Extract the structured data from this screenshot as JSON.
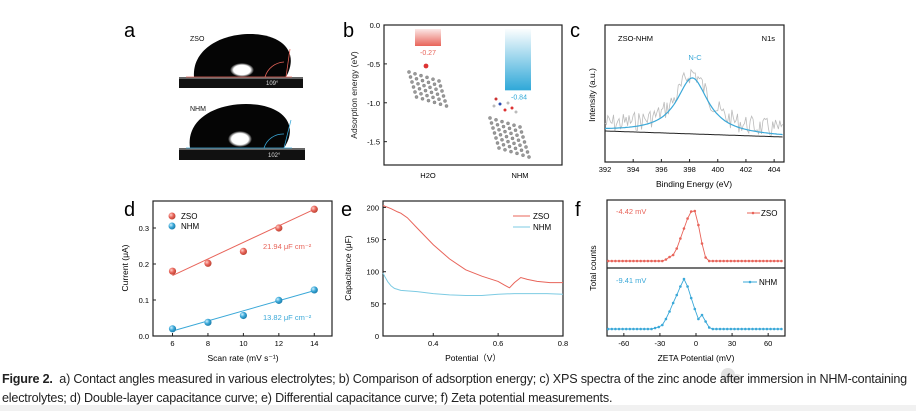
{
  "figure": {
    "panel_labels": [
      "a",
      "b",
      "c",
      "d",
      "e",
      "f"
    ],
    "caption_label": "Figure 2.",
    "caption_text": "a) Contact angles measured in various electrolytes; b) Comparison of adsorption energy; c) XPS spectra of the zinc anode after immersion in NHM-containing electrolytes; d) Double-layer capacitance curve; e) Differential capacitance curve; f) Zeta potential measurements.",
    "watermark": "公众号 · 水系星球"
  },
  "panel_a": {
    "drops": [
      {
        "label": "ZSO",
        "angle": "109°",
        "color": "#e8645a"
      },
      {
        "label": "NHM",
        "angle": "102°",
        "color": "#3aa8d8"
      }
    ]
  },
  "chart_data": [
    {
      "panel": "b",
      "type": "bar",
      "categories": [
        "H2O",
        "NHM"
      ],
      "values": [
        -0.27,
        -0.84
      ],
      "value_labels": [
        "-0.27",
        "-0.84"
      ],
      "colors": [
        "#e8645a",
        "#2fa8d8"
      ],
      "ylabel": "Adsorption energy (eV)",
      "ylim": [
        -1.8,
        0.0
      ],
      "yticks": [
        0.0,
        -0.5,
        -1.0,
        -1.5
      ],
      "ytick_labels": [
        "0.0",
        "-0.5",
        "-1.0",
        "-1.5"
      ]
    },
    {
      "panel": "c",
      "type": "line",
      "title_left": "ZSO-NHM",
      "title_right": "N1s",
      "peak_label": "N-C",
      "peak_center": 398.2,
      "xlabel": "Binding Energy (eV)",
      "ylabel": "Intensity (a.u.)",
      "xlim": [
        392,
        404.7
      ],
      "xticks": [
        392,
        394,
        396,
        398,
        400,
        402,
        404
      ],
      "series": [
        {
          "role": "raw",
          "color": "#b8b8b8"
        },
        {
          "role": "fit",
          "color": "#3aa8d8"
        },
        {
          "role": "background",
          "color": "#222222"
        }
      ]
    },
    {
      "panel": "d",
      "type": "scatter",
      "xlabel": "Scan rate (mV s⁻¹)",
      "ylabel": "Current (μA)",
      "xlim": [
        4.9,
        15
      ],
      "ylim": [
        0,
        0.375
      ],
      "xticks": [
        6,
        8,
        10,
        12,
        14
      ],
      "yticks": [
        0.0,
        0.1,
        0.2,
        0.3
      ],
      "ytick_labels": [
        "0.0",
        "0.1",
        "0.2",
        "0.3"
      ],
      "x": [
        6,
        8,
        10,
        12,
        14
      ],
      "series": [
        {
          "name": "ZSO",
          "values": [
            0.18,
            0.202,
            0.235,
            0.3,
            0.352
          ],
          "fit": [
            0.168,
            0.352
          ],
          "annotation": "21.94 μF cm⁻²",
          "color": "#e8645a"
        },
        {
          "name": "NHM",
          "values": [
            0.02,
            0.038,
            0.057,
            0.099,
            0.128
          ],
          "fit": [
            0.014,
            0.126
          ],
          "annotation": "13.82 μF cm⁻²",
          "color": "#3aa8d8"
        }
      ]
    },
    {
      "panel": "e",
      "type": "line",
      "xlabel": "Potential（V）",
      "ylabel": "Capacitance (μF)",
      "xlim": [
        0.245,
        0.8
      ],
      "ylim": [
        0,
        210
      ],
      "xticks": [
        0.4,
        0.6,
        0.8
      ],
      "yticks": [
        0,
        50,
        100,
        150,
        200
      ],
      "series": [
        {
          "name": "ZSO",
          "color": "#e8645a",
          "x": [
            0.245,
            0.27,
            0.29,
            0.3,
            0.32,
            0.35,
            0.4,
            0.45,
            0.5,
            0.55,
            0.6,
            0.62,
            0.635,
            0.65,
            0.67,
            0.69,
            0.72,
            0.76,
            0.8
          ],
          "y": [
            203,
            198,
            193,
            191,
            184,
            168,
            142,
            120,
            103,
            93,
            85,
            79,
            75,
            83,
            91,
            88,
            85,
            83,
            83
          ]
        },
        {
          "name": "NHM",
          "color": "#7dcbe3",
          "x": [
            0.245,
            0.25,
            0.26,
            0.27,
            0.28,
            0.3,
            0.35,
            0.4,
            0.45,
            0.5,
            0.55,
            0.6,
            0.65,
            0.7,
            0.75,
            0.8
          ],
          "y": [
            98,
            93,
            84,
            78,
            74,
            71,
            69,
            66,
            64,
            63,
            63,
            65,
            66,
            66,
            66,
            65
          ]
        }
      ]
    },
    {
      "panel": "f",
      "type": "line",
      "xlabel": "ZETA Potential (mV)",
      "ylabel": "Total counts",
      "xlim": [
        -74,
        74
      ],
      "xticks": [
        -60,
        -30,
        0,
        30,
        60
      ],
      "series": [
        {
          "name": "ZSO",
          "annotation": "-4.42 mV",
          "color": "#e8645a",
          "x": [
            -28,
            -25,
            -22,
            -19,
            -16,
            -13,
            -10,
            -7,
            -4,
            -1,
            2,
            5,
            8,
            11
          ],
          "y": [
            0,
            0.03,
            0.08,
            0.12,
            0.25,
            0.45,
            0.65,
            0.85,
            0.99,
            1.0,
            0.72,
            0.35,
            0.07,
            0
          ]
        },
        {
          "name": "NHM",
          "annotation": "-9.41 mV",
          "color": "#3aa8d8",
          "x": [
            -37,
            -34,
            -31,
            -28,
            -25,
            -22,
            -19,
            -16,
            -13,
            -10,
            -7,
            -4,
            -1,
            2,
            5,
            8,
            11,
            14
          ],
          "y": [
            0,
            0.02,
            0.04,
            0.08,
            0.2,
            0.35,
            0.52,
            0.68,
            0.85,
            1.0,
            0.85,
            0.62,
            0.4,
            0.2,
            0.28,
            0.15,
            0.03,
            0
          ]
        }
      ]
    }
  ]
}
